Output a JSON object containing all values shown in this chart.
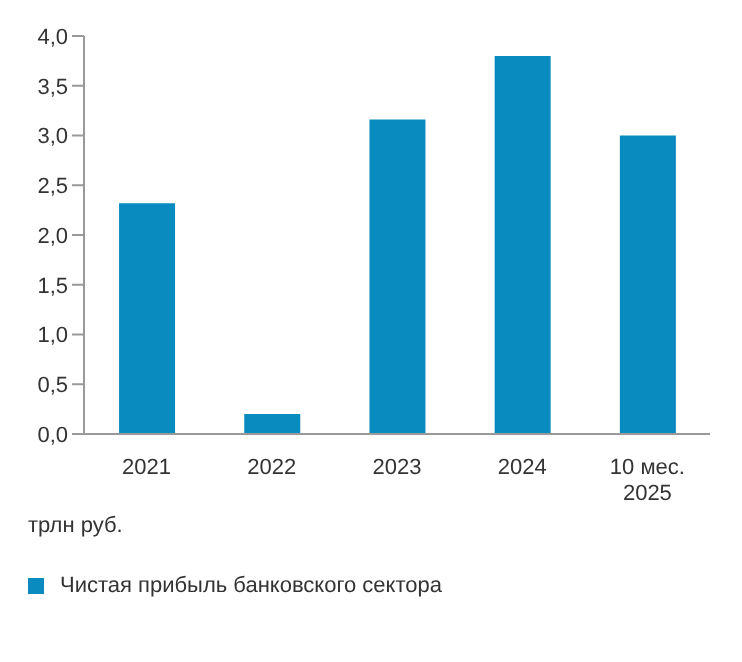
{
  "chart_data": {
    "type": "bar",
    "categories": [
      "2021",
      "2022",
      "2023",
      "2024",
      "10 мес. 2025"
    ],
    "series": [
      {
        "name": "Чистая прибыль банковского сектора",
        "color": "#0a8bbf",
        "values": [
          2.32,
          0.2,
          3.16,
          3.8,
          3.0
        ]
      }
    ],
    "ylim": [
      0,
      4
    ],
    "yticks": [
      {
        "value": 0,
        "label": "0,0"
      },
      {
        "value": 0.5,
        "label": "0,5"
      },
      {
        "value": 1,
        "label": "1,0"
      },
      {
        "value": 1.5,
        "label": "1,5"
      },
      {
        "value": 2,
        "label": "2,0"
      },
      {
        "value": 2.5,
        "label": "2,5"
      },
      {
        "value": 3,
        "label": "3,0"
      },
      {
        "value": 3.5,
        "label": "3,5"
      },
      {
        "value": 4,
        "label": "4,0"
      }
    ],
    "annotations": [
      "трлн руб."
    ],
    "grid": false,
    "legend": "bottom"
  }
}
